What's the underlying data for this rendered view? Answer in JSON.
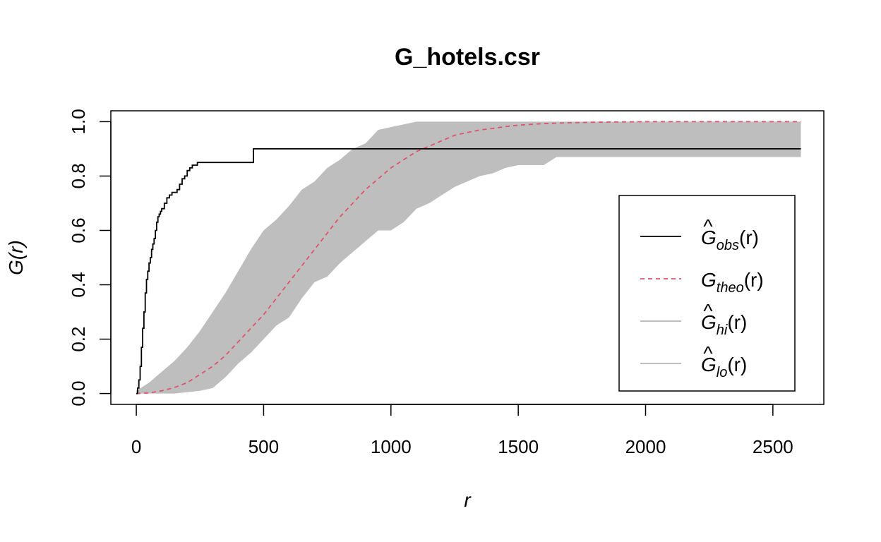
{
  "chart_data": {
    "type": "line",
    "title": "G_hotels.csr",
    "xlabel": "r",
    "ylabel": "G(r)",
    "xlim": [
      -100,
      2700
    ],
    "ylim": [
      -0.04,
      1.04
    ],
    "x_ticks": [
      0,
      500,
      1000,
      1500,
      2000,
      2500
    ],
    "x_tick_labels": [
      "0",
      "500",
      "1000",
      "1500",
      "2000",
      "2500"
    ],
    "y_ticks": [
      0,
      0.2,
      0.4,
      0.6,
      0.8,
      1.0
    ],
    "y_tick_labels": [
      "0.0",
      "0.2",
      "0.4",
      "0.6",
      "0.8",
      "1.0"
    ],
    "grid": false,
    "legend_position": "bottom-right",
    "legend": [
      {
        "main": "G",
        "hat": true,
        "sub": "obs",
        "arg": "(r)",
        "style": "solid",
        "color": "#000000"
      },
      {
        "main": "G",
        "hat": false,
        "sub": "theo",
        "arg": "(r)",
        "style": "dashed",
        "color": "#DF536B"
      },
      {
        "main": "G",
        "hat": true,
        "sub": "hi",
        "arg": "(r)",
        "style": "solid",
        "color": "#BEBEBE"
      },
      {
        "main": "G",
        "hat": true,
        "sub": "lo",
        "arg": "(r)",
        "style": "solid",
        "color": "#BEBEBE"
      }
    ],
    "colors": {
      "obs": "#000000",
      "theo": "#DF536B",
      "envelope": "#BEBEBE"
    },
    "series": [
      {
        "name": "obs",
        "step": true,
        "x": [
          0,
          5,
          10,
          15,
          20,
          25,
          30,
          35,
          40,
          45,
          50,
          55,
          60,
          65,
          70,
          75,
          80,
          85,
          90,
          95,
          100,
          110,
          120,
          130,
          140,
          150,
          160,
          170,
          180,
          190,
          200,
          210,
          220,
          230,
          240,
          280,
          350,
          455,
          460,
          2610
        ],
        "y": [
          0.0,
          0.02,
          0.05,
          0.1,
          0.17,
          0.24,
          0.3,
          0.37,
          0.42,
          0.45,
          0.48,
          0.5,
          0.53,
          0.55,
          0.57,
          0.6,
          0.63,
          0.65,
          0.66,
          0.67,
          0.68,
          0.7,
          0.72,
          0.73,
          0.74,
          0.74,
          0.75,
          0.77,
          0.79,
          0.8,
          0.82,
          0.83,
          0.84,
          0.84,
          0.85,
          0.85,
          0.85,
          0.85,
          0.9,
          0.9
        ]
      },
      {
        "name": "theo",
        "x": [
          0,
          50,
          100,
          150,
          200,
          250,
          300,
          350,
          400,
          450,
          500,
          550,
          600,
          650,
          700,
          750,
          800,
          850,
          900,
          950,
          1000,
          1050,
          1100,
          1150,
          1200,
          1250,
          1300,
          1350,
          1400,
          1450,
          1500,
          1600,
          1700,
          1800,
          1900,
          2000,
          2200,
          2400,
          2610
        ],
        "y": [
          0.0,
          0.002,
          0.01,
          0.022,
          0.04,
          0.07,
          0.1,
          0.14,
          0.19,
          0.24,
          0.29,
          0.35,
          0.41,
          0.47,
          0.53,
          0.59,
          0.65,
          0.7,
          0.75,
          0.79,
          0.83,
          0.86,
          0.89,
          0.91,
          0.93,
          0.95,
          0.96,
          0.97,
          0.975,
          0.982,
          0.987,
          0.993,
          0.996,
          0.998,
          0.999,
          1.0,
          1.0,
          1.0,
          1.0
        ]
      },
      {
        "name": "hi",
        "x": [
          0,
          50,
          100,
          150,
          200,
          250,
          300,
          350,
          400,
          450,
          500,
          550,
          600,
          650,
          700,
          750,
          800,
          850,
          900,
          950,
          1000,
          1050,
          1100,
          1150,
          1200,
          1300,
          1400,
          1500,
          1600,
          1700,
          2000,
          2300,
          2610
        ],
        "y": [
          0.01,
          0.04,
          0.08,
          0.12,
          0.17,
          0.23,
          0.3,
          0.37,
          0.45,
          0.53,
          0.6,
          0.64,
          0.69,
          0.75,
          0.78,
          0.83,
          0.86,
          0.9,
          0.92,
          0.97,
          0.98,
          0.99,
          1.0,
          1.0,
          1.0,
          1.0,
          1.0,
          1.0,
          1.0,
          1.0,
          1.0,
          1.0,
          1.0
        ]
      },
      {
        "name": "lo",
        "x": [
          0,
          100,
          150,
          200,
          250,
          300,
          350,
          400,
          450,
          500,
          550,
          600,
          650,
          700,
          750,
          800,
          850,
          900,
          950,
          1000,
          1050,
          1100,
          1150,
          1200,
          1250,
          1300,
          1350,
          1400,
          1450,
          1500,
          1550,
          1600,
          1650,
          1700,
          2000,
          2300,
          2610
        ],
        "y": [
          0.0,
          0.0,
          0.0,
          0.005,
          0.01,
          0.02,
          0.06,
          0.11,
          0.15,
          0.2,
          0.25,
          0.28,
          0.35,
          0.41,
          0.43,
          0.48,
          0.52,
          0.56,
          0.6,
          0.6,
          0.63,
          0.68,
          0.7,
          0.73,
          0.76,
          0.78,
          0.8,
          0.81,
          0.83,
          0.84,
          0.84,
          0.84,
          0.87,
          0.87,
          0.87,
          0.87,
          0.87
        ]
      }
    ]
  }
}
